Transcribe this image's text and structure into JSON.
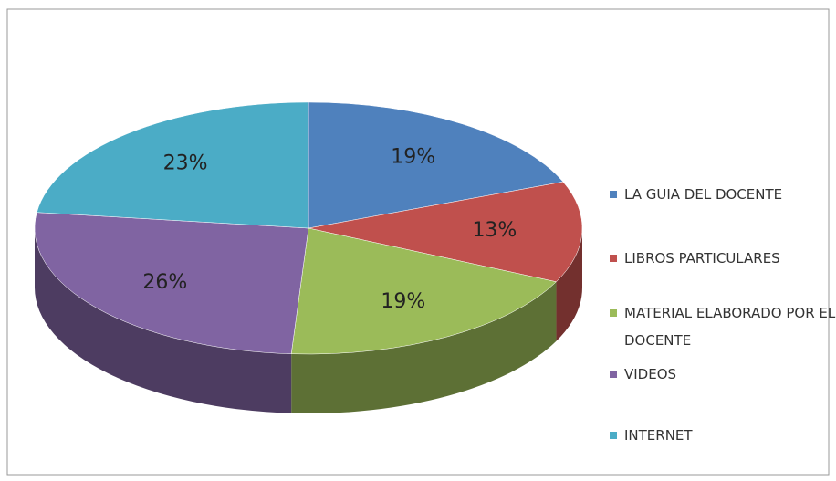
{
  "chart_data": {
    "type": "pie",
    "categories": [
      "LA GUIA DEL DOCENTE",
      "LIBROS PARTICULARES",
      "MATERIAL ELABORADO POR EL DOCENTE",
      "VIDEOS",
      "INTERNET"
    ],
    "values": [
      19,
      13,
      19,
      26,
      23
    ],
    "value_labels": [
      "19%",
      "13%",
      "19%",
      "26%",
      "23%"
    ],
    "colors": [
      "#4f81bd",
      "#c0504d",
      "#9bbb59",
      "#8064a2",
      "#4bacc6"
    ],
    "legend": "right"
  }
}
